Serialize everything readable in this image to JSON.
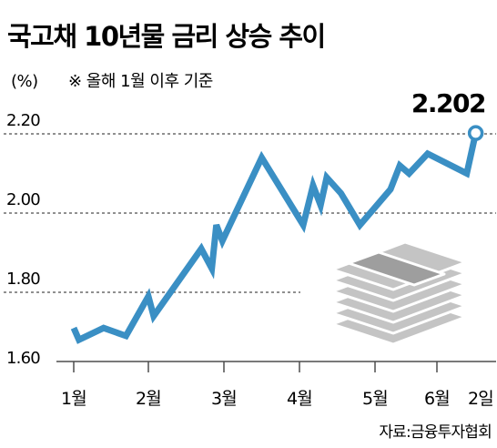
{
  "chart_data": {
    "type": "line",
    "title": "국고채 10년물 금리 상승 추이",
    "unit": "(%)",
    "note": "※ 올해 1월 이후 기준",
    "source": "자료:금융투자협회",
    "callout": "2.202",
    "ylim": [
      1.6,
      2.2
    ],
    "yticks": [
      "2.20",
      "2.00",
      "1.80",
      "1.60"
    ],
    "ytick_values": [
      2.2,
      2.0,
      1.8,
      1.6
    ],
    "x_categories": [
      "1월",
      "2월",
      "3월",
      "4월",
      "5월",
      "6월",
      "2일"
    ],
    "grid": "dashed",
    "series": [
      {
        "color": "#3a8fc4",
        "points": [
          [
            0.0,
            1.71
          ],
          [
            0.07,
            1.68
          ],
          [
            0.4,
            1.71
          ],
          [
            0.7,
            1.69
          ],
          [
            1.0,
            1.79
          ],
          [
            1.07,
            1.74
          ],
          [
            1.7,
            1.91
          ],
          [
            1.84,
            1.86
          ],
          [
            1.9,
            1.97
          ],
          [
            1.98,
            1.93
          ],
          [
            2.5,
            2.14
          ],
          [
            3.05,
            1.97
          ],
          [
            3.18,
            2.07
          ],
          [
            3.28,
            2.02
          ],
          [
            3.36,
            2.09
          ],
          [
            3.55,
            2.05
          ],
          [
            3.8,
            1.97
          ],
          [
            4.25,
            2.06
          ],
          [
            4.4,
            2.12
          ],
          [
            4.55,
            2.1
          ],
          [
            4.85,
            2.15
          ],
          [
            5.4,
            2.1
          ],
          [
            5.52,
            2.202
          ]
        ]
      }
    ],
    "colors": {
      "line": "#3a8fc4",
      "grid": "#4d4d4d",
      "text": "#231f20",
      "icon": "#c4c4c4"
    }
  }
}
